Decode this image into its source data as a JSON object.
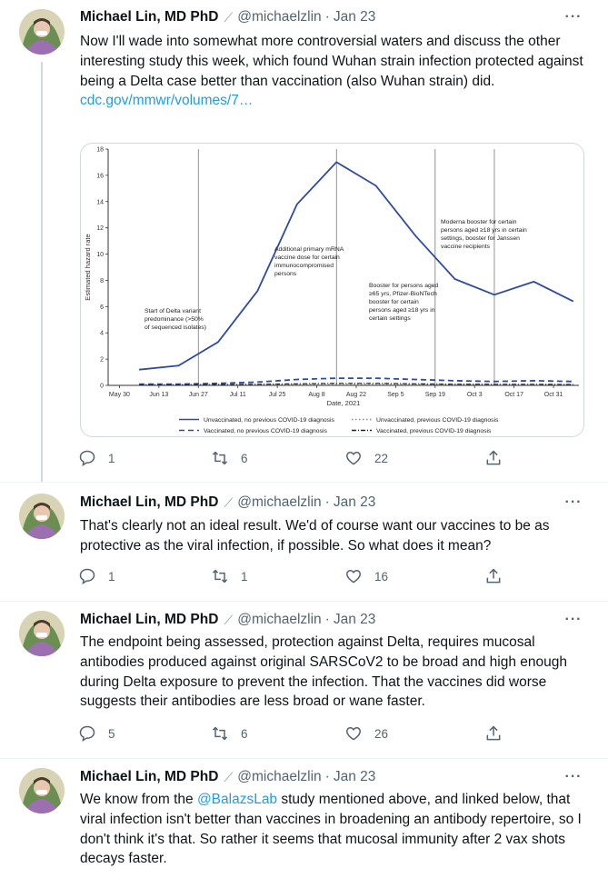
{
  "author": {
    "name": "Michael Lin, MD PhD",
    "handle": "@michaelzlin",
    "badge_icon": "dna-icon",
    "more_icon": "more-options-icon"
  },
  "tweets": [
    {
      "date": "Jan 23",
      "text": "Now I'll wade into somewhat more controversial waters and discuss the other interesting study this week, which found Wuhan strain infection protected against being a Delta case better than vaccination (also Wuhan strain) did.",
      "link": "cdc.gov/mmwr/volumes/7…",
      "replies": "1",
      "retweets": "6",
      "likes": "22"
    },
    {
      "date": "Jan 23",
      "text": "That's clearly not an ideal result. We'd of course want our vaccines to be as protective as the viral infection, if possible. So what does it mean?",
      "replies": "1",
      "retweets": "1",
      "likes": "16"
    },
    {
      "date": "Jan 23",
      "text": "The endpoint being assessed, protection against Delta, requires mucosal antibodies produced against original SARSCoV2 to be broad and high enough during Delta exposure to prevent the infection. That the vaccines did worse suggests their antibodies are less broad or wane faster.",
      "replies": "5",
      "retweets": "6",
      "likes": "26"
    },
    {
      "date": "Jan 23",
      "text_before": "We know from the ",
      "mention": "@BalazsLab",
      "text_after": " study mentioned above, and linked below, that viral infection isn't better than vaccines in broadening an antibody repertoire, so I don't think it's that. So rather it seems that mucosal immunity after 2 vax shots decays faster."
    }
  ],
  "chart_data": {
    "type": "line",
    "xlabel": "Date, 2021",
    "ylabel": "Estimated hazard rate",
    "ylim": [
      0,
      18
    ],
    "yticks": [
      0,
      2,
      4,
      6,
      8,
      10,
      12,
      14,
      16,
      18
    ],
    "xticks": [
      "May 30",
      "Jun 13",
      "Jun 27",
      "Jul 11",
      "Jul 25",
      "Aug 8",
      "Aug 22",
      "Sep 5",
      "Sep 19",
      "Oct 3",
      "Oct 17",
      "Oct 31"
    ],
    "x": [
      "Jun 6",
      "Jun 20",
      "Jul 4",
      "Jul 18",
      "Aug 1",
      "Aug 15",
      "Aug 29",
      "Sep 12",
      "Sep 26",
      "Oct 10",
      "Oct 24",
      "Nov 7"
    ],
    "series": [
      {
        "name": "Unvaccinated, no previous COVID-19 diagnosis",
        "color": "#2f4aa6",
        "dash": "solid",
        "values": [
          1.2,
          1.5,
          3.3,
          7.2,
          13.8,
          17.0,
          15.2,
          11.4,
          8.1,
          6.9,
          7.9,
          6.4
        ]
      },
      {
        "name": "Vaccinated, no previous COVID-19 diagnosis",
        "color": "#2f4aa6",
        "dash": "dash",
        "values": [
          0.1,
          0.1,
          0.15,
          0.25,
          0.45,
          0.55,
          0.55,
          0.45,
          0.35,
          0.3,
          0.35,
          0.3
        ]
      },
      {
        "name": "Unvaccinated, previous COVID-19 diagnosis",
        "color": "#8a8a8a",
        "dash": "dot",
        "values": [
          0.05,
          0.05,
          0.05,
          0.05,
          0.08,
          0.1,
          0.1,
          0.08,
          0.06,
          0.05,
          0.05,
          0.05
        ]
      },
      {
        "name": "Vaccinated, previous COVID-19 diagnosis",
        "color": "#222222",
        "dash": "dashdot",
        "values": [
          0.05,
          0.05,
          0.06,
          0.08,
          0.12,
          0.15,
          0.15,
          0.12,
          0.09,
          0.08,
          0.08,
          0.07
        ]
      }
    ],
    "vlines": [
      "Jun 27",
      "Aug 15",
      "Sep 19",
      "Oct 10"
    ],
    "annotations": [
      {
        "lines": [
          "Start of Delta variant",
          "predominance (>50%",
          "of sequenced isolates)"
        ]
      },
      {
        "lines": [
          "Additional primary mRNA",
          "vaccine dose for certain",
          "immunocompromised",
          "persons"
        ]
      },
      {
        "lines": [
          "Booster for persons aged",
          "≥65 yrs, Pfizer-BioNTech",
          "booster for certain",
          "persons aged ≥18 yrs in",
          "certain settings"
        ]
      },
      {
        "lines": [
          "Moderna booster for certain",
          "persons aged ≥18 yrs in certain",
          "settings, booster for Janssen",
          "vaccine recipients"
        ]
      }
    ]
  }
}
